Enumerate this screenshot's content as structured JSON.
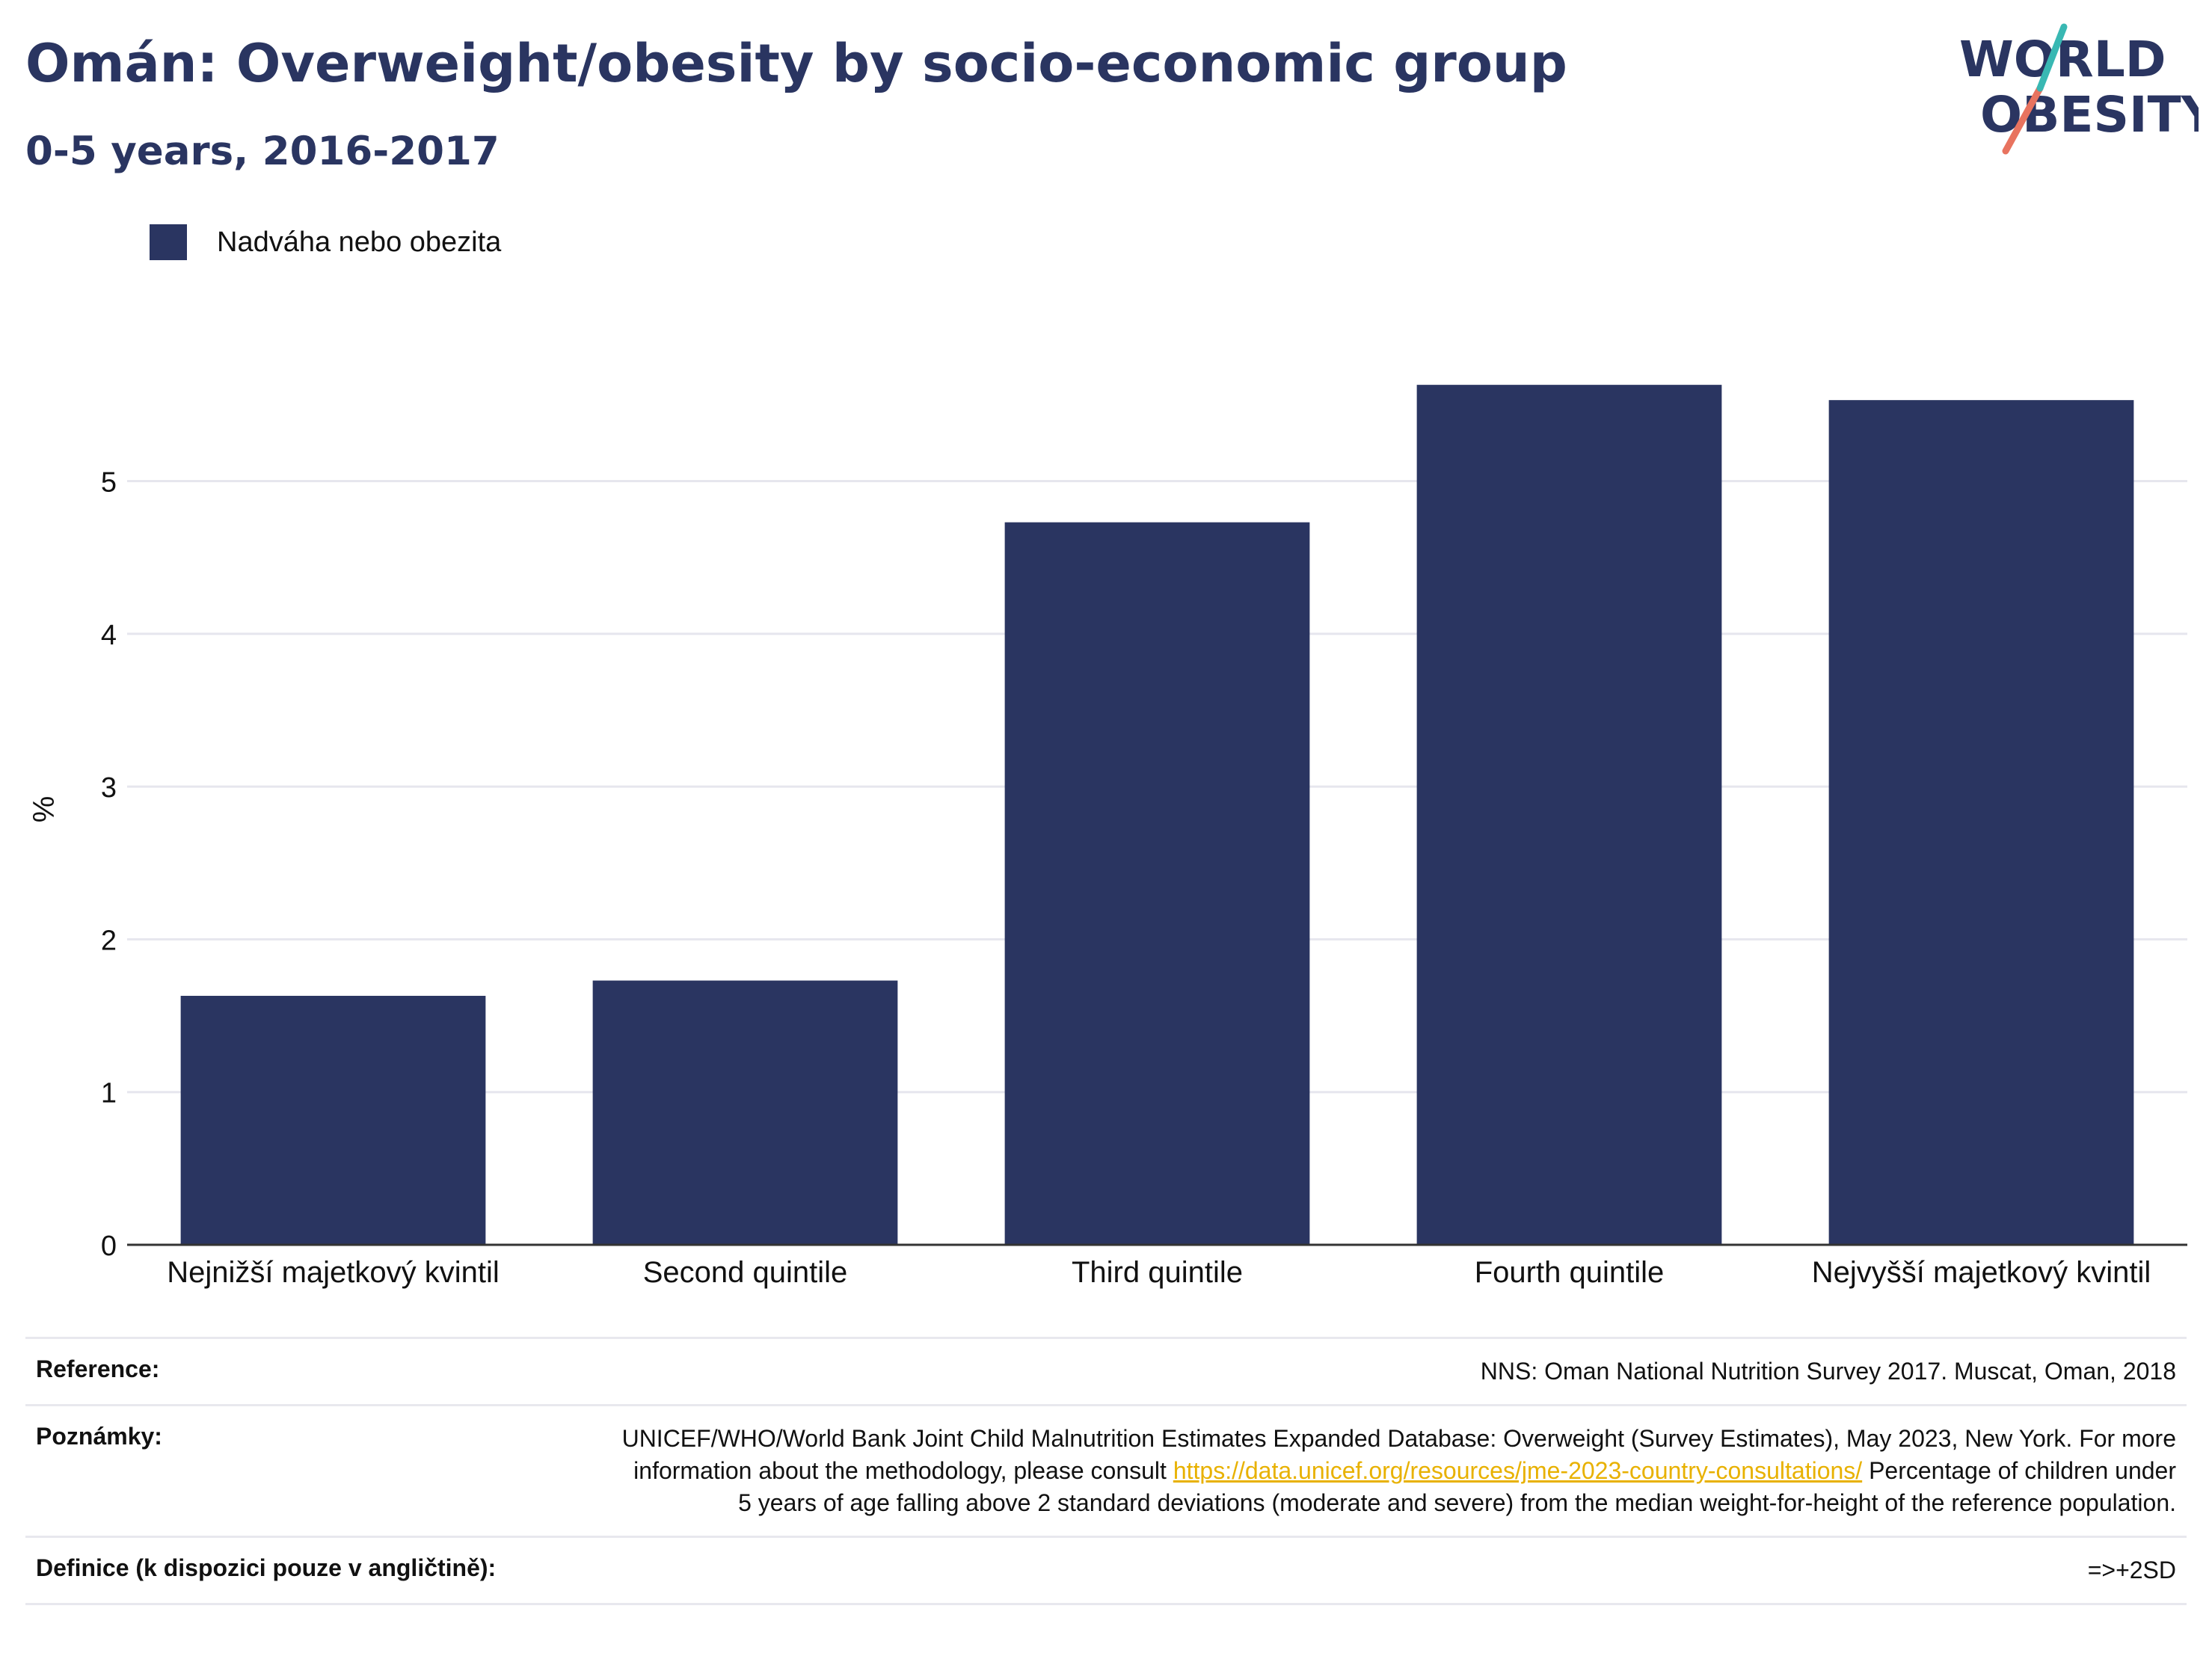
{
  "header": {
    "title": "Omán: Overweight/obesity by socio-economic group",
    "subtitle": "0-5 years, 2016-2017",
    "logo_line1": "WORLD",
    "logo_line2": "OBESITY"
  },
  "legend": {
    "label": "Nadváha nebo obezita",
    "color": "#2a3561"
  },
  "chart_data": {
    "type": "bar",
    "categories": [
      "Nejnižší majetkový kvintil",
      "Second quintile",
      "Third quintile",
      "Fourth quintile",
      "Nejvyšší majetkový kvintil"
    ],
    "series": [
      {
        "name": "Nadváha nebo obezita",
        "values": [
          1.63,
          1.73,
          4.73,
          5.63,
          5.53
        ],
        "color": "#2a3561"
      }
    ],
    "ylabel": "%",
    "xlabel": "",
    "ylim": [
      0,
      5.8
    ],
    "yticks": [
      0,
      1,
      2,
      3,
      4,
      5
    ],
    "grid": true,
    "legend_position": "top-left"
  },
  "footer": {
    "reference_label": "Reference:",
    "reference_value": "NNS: Oman National Nutrition Survey 2017. Muscat, Oman, 2018",
    "notes_label": "Poznámky:",
    "notes_text_1": "UNICEF/WHO/World Bank Joint Child Malnutrition Estimates Expanded Database: Overweight (Survey Estimates), May 2023, New York. For more information about the methodology, please consult",
    "notes_link": "https://data.unicef.org/resources/jme-2023-country-consultations/",
    "notes_text_2": "Percentage of children under 5 years of age falling above 2 standard deviations (moderate and severe) from the median weight-for-height of the reference population.",
    "definition_label": "Definice (k dispozici pouze v angličtině):",
    "definition_value": "=>+2SD"
  }
}
